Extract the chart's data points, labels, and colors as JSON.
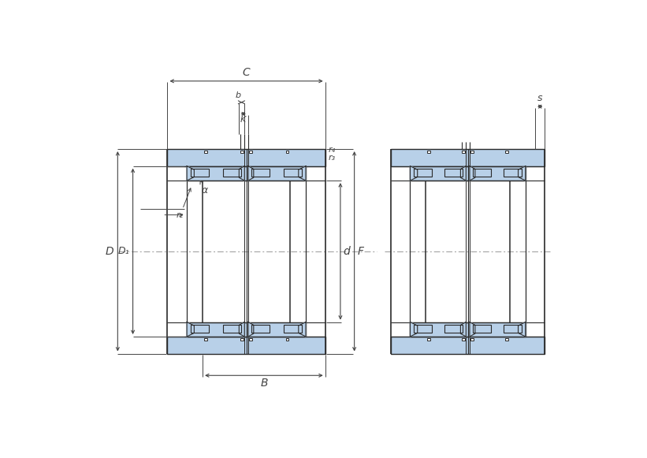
{
  "bg_color": "#ffffff",
  "line_color": "#2a2a2a",
  "blue_fill": "#b8d0e8",
  "dim_color": "#444444",
  "fig_width": 8.21,
  "fig_height": 5.81,
  "labels": {
    "C": "C",
    "b": "b",
    "K": "K",
    "r4": "r₄",
    "r3": "r₃",
    "r2": "r₂",
    "alpha": "α",
    "D": "D",
    "D1": "D₁",
    "B": "B",
    "d": "d",
    "F": "F",
    "s": "s"
  }
}
